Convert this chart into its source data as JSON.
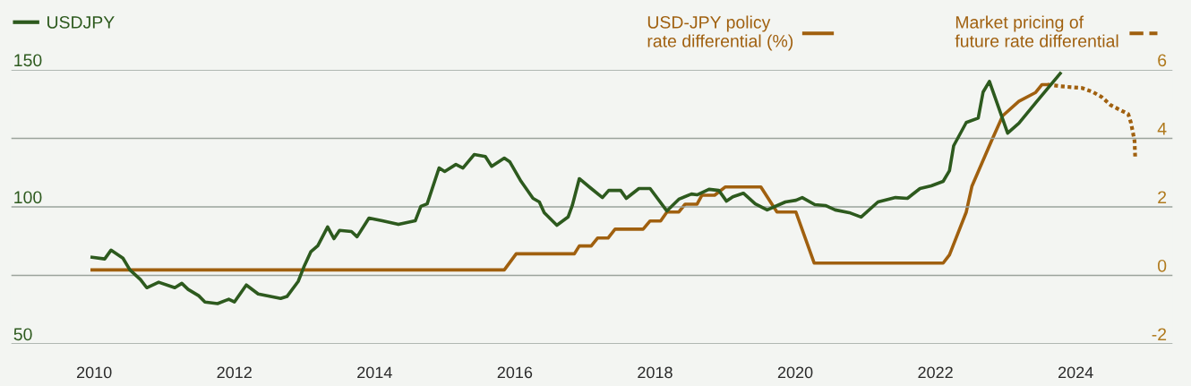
{
  "chart_data": {
    "type": "line",
    "legend": "top",
    "grid": "y",
    "marker": "none",
    "xlim": [
      2008.81,
      2025.39
    ],
    "xticks": [
      2010,
      2012,
      2014,
      2016,
      2018,
      2020,
      2022,
      2024
    ],
    "ylim": [
      50,
      150
    ],
    "yticks": [
      150,
      {
        "value": 125,
        "label": null
      },
      100,
      {
        "value": 75,
        "label": null
      },
      50
    ],
    "y2lim": [
      -2,
      6
    ],
    "y2ticks": [
      6,
      4,
      2,
      0,
      -2
    ],
    "series": [
      {
        "name": "USDJPY",
        "color": "#2d5a1e",
        "line_style": "solid",
        "x": [
          2009.97,
          2010.15,
          2010.24,
          2010.41,
          2010.51,
          2010.66,
          2010.75,
          2010.92,
          2011.15,
          2011.25,
          2011.34,
          2011.49,
          2011.58,
          2011.76,
          2011.92,
          2012.0,
          2012.17,
          2012.34,
          2012.66,
          2012.75,
          2012.91,
          2012.99,
          2013.09,
          2013.19,
          2013.33,
          2013.42,
          2013.5,
          2013.67,
          2013.75,
          2013.92,
          2014.11,
          2014.34,
          2014.58,
          2014.66,
          2014.75,
          2014.92,
          2015.0,
          2015.16,
          2015.26,
          2015.42,
          2015.58,
          2015.67,
          2015.85,
          2015.93,
          2016.09,
          2016.26,
          2016.35,
          2016.42,
          2016.6,
          2016.76,
          2016.82,
          2016.92,
          2017.09,
          2017.25,
          2017.34,
          2017.51,
          2017.59,
          2017.77,
          2017.93,
          2018.17,
          2018.34,
          2018.52,
          2018.6,
          2018.77,
          2018.91,
          2019.02,
          2019.11,
          2019.26,
          2019.43,
          2019.6,
          2019.86,
          2020.01,
          2020.1,
          2020.28,
          2020.43,
          2020.57,
          2020.77,
          2020.94,
          2021.18,
          2021.43,
          2021.6,
          2021.78,
          2021.94,
          2022.11,
          2022.2,
          2022.26,
          2022.44,
          2022.61,
          2022.68,
          2022.77,
          2023.03,
          2023.19,
          2023.45,
          2023.78
        ],
        "values": [
          81.6,
          81.0,
          84.2,
          81.3,
          77.0,
          73.5,
          70.5,
          72.5,
          70.5,
          72.1,
          69.9,
          67.6,
          65.3,
          64.7,
          66.3,
          65.3,
          71.5,
          68.2,
          66.6,
          67.3,
          72.8,
          78.0,
          83.6,
          85.8,
          92.7,
          88.4,
          91.4,
          91.0,
          89.1,
          95.9,
          94.9,
          93.6,
          94.9,
          100.2,
          101.1,
          114.2,
          112.9,
          115.5,
          114.2,
          119.1,
          118.4,
          114.8,
          117.8,
          116.4,
          109.3,
          103.1,
          101.8,
          97.9,
          93.3,
          96.3,
          100.5,
          110.3,
          106.7,
          103.4,
          106.0,
          106.0,
          103.1,
          106.7,
          106.7,
          98.5,
          102.8,
          104.7,
          104.4,
          106.4,
          106.0,
          102.1,
          103.7,
          105.0,
          101.1,
          98.9,
          101.8,
          102.4,
          103.4,
          100.8,
          100.5,
          98.9,
          97.9,
          96.3,
          101.8,
          103.4,
          103.1,
          106.7,
          107.7,
          109.3,
          113.2,
          122.3,
          130.8,
          132.4,
          141.9,
          145.8,
          126.9,
          130.5,
          138.6,
          148.7
        ]
      },
      {
        "name": "USD-JPY policy\nrate differential (%)",
        "color": "#a0600f",
        "line_style": "solid",
        "axis": "y2",
        "x": [
          2009.97,
          2015.85,
          2016.02,
          2016.85,
          2016.92,
          2017.09,
          2017.18,
          2017.33,
          2017.43,
          2017.83,
          2017.93,
          2018.08,
          2018.17,
          2018.34,
          2018.43,
          2018.6,
          2018.67,
          2018.85,
          2019.0,
          2019.51,
          2019.74,
          2020.01,
          2020.27,
          2022.11,
          2022.2,
          2022.44,
          2022.52,
          2022.8,
          2022.96,
          2023.19,
          2023.43,
          2023.52,
          2023.6
        ],
        "values": [
          0.16,
          0.16,
          0.63,
          0.63,
          0.86,
          0.86,
          1.09,
          1.09,
          1.35,
          1.35,
          1.59,
          1.59,
          1.85,
          1.85,
          2.08,
          2.08,
          2.34,
          2.34,
          2.58,
          2.58,
          1.85,
          1.85,
          0.36,
          0.36,
          0.6,
          1.85,
          2.6,
          3.93,
          4.66,
          5.08,
          5.34,
          5.57,
          5.57
        ]
      },
      {
        "name": "Market pricing of\nfuture rate differential",
        "color": "#a0600f",
        "line_style": "dotted",
        "axis": "y2",
        "x": [
          2023.6,
          2023.79,
          2024.09,
          2024.24,
          2024.37,
          2024.5,
          2024.75,
          2024.79,
          2024.84,
          2024.85
        ],
        "values": [
          5.57,
          5.52,
          5.47,
          5.36,
          5.21,
          4.97,
          4.71,
          4.45,
          3.93,
          3.41
        ]
      }
    ]
  }
}
